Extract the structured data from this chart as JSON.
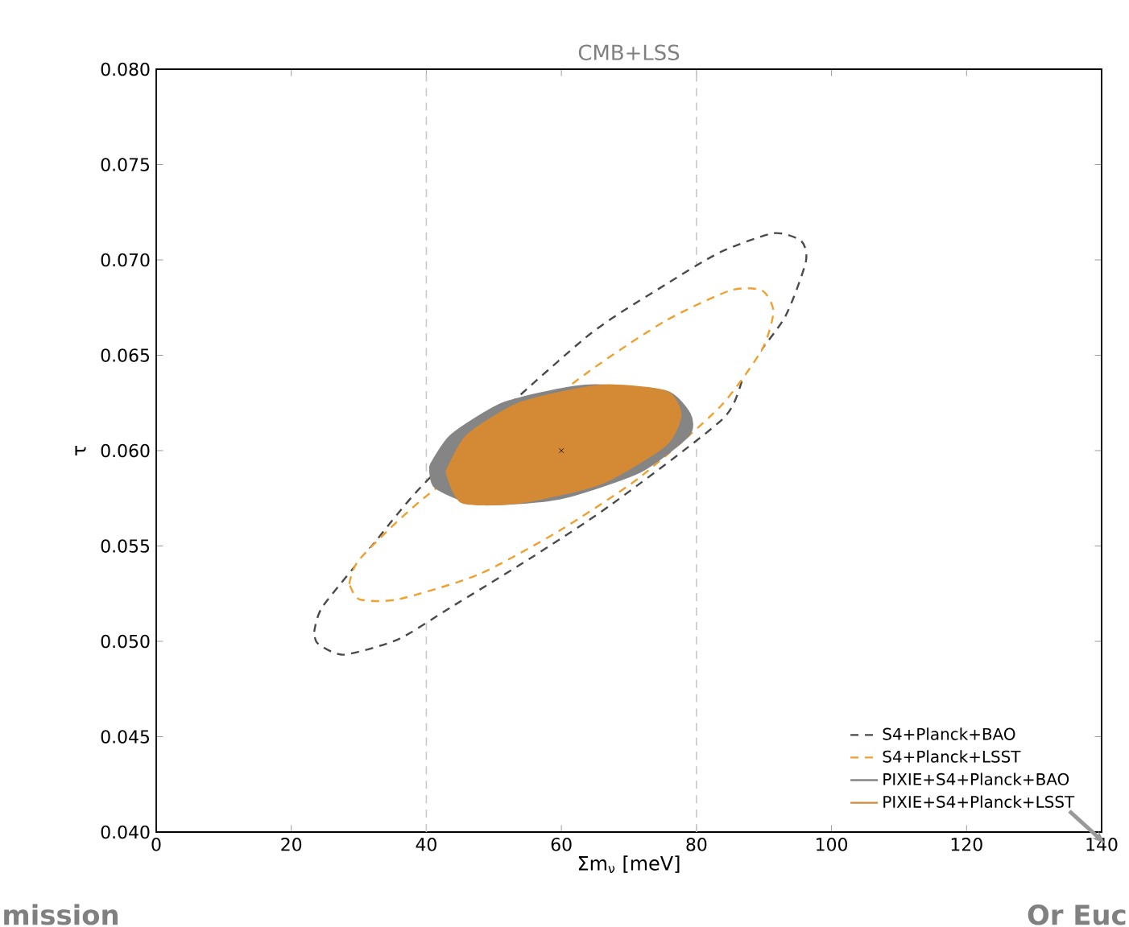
{
  "chart_data": {
    "type": "area",
    "title": "CMB+LSS",
    "xlabel": "Σm$_{ν}$ [meV]",
    "ylabel": "τ",
    "xlim": [
      0,
      140
    ],
    "ylim": [
      0.04,
      0.08
    ],
    "xticks": [
      0,
      20,
      40,
      60,
      80,
      100,
      120,
      140
    ],
    "yticks": [
      {
        "value": 0.04,
        "label": "0.040"
      },
      {
        "value": 0.045,
        "label": "0.045"
      },
      {
        "value": 0.05,
        "label": "0.050"
      },
      {
        "value": 0.055,
        "label": "0.055"
      },
      {
        "value": 0.06,
        "label": "0.060"
      },
      {
        "value": 0.065,
        "label": "0.065"
      },
      {
        "value": 0.07,
        "label": "0.070"
      },
      {
        "value": 0.075,
        "label": "0.075"
      },
      {
        "value": 0.08,
        "label": "0.080"
      }
    ],
    "legend": "bottom right",
    "grid": false,
    "ref_lines": [
      {
        "axis": "x",
        "value": 40,
        "color": "#c8c8c8",
        "line_style": "dashed"
      },
      {
        "axis": "x",
        "value": 80,
        "color": "#c8c8c8",
        "line_style": "dashed"
      }
    ],
    "annotations": [
      "mission",
      "Or Euc"
    ],
    "series": [
      {
        "name": "S4+Planck+BAO",
        "line_style": "dashed",
        "color": "#4a4a4a",
        "x": [
          23.4,
          24.6,
          31.7,
          40.6,
          51.6,
          63.5,
          75.4,
          83.5,
          91.4,
          95.5,
          96.2,
          93.1,
          87.4,
          84.0,
          67.5,
          55.6,
          43.7,
          35.8,
          27.7,
          23.9
        ],
        "values": [
          0.0505,
          0.0518,
          0.0549,
          0.0586,
          null,
          0.0659,
          0.0687,
          0.0704,
          0.0714,
          0.071,
          0.0699,
          0.067,
          0.0642,
          0.0617,
          0.0572,
          0.0544,
          0.0518,
          0.0501,
          0.0493,
          0.0499
        ]
      },
      {
        "name": "S4+Planck+LSST",
        "line_style": "dashed",
        "color": "#f0a030",
        "x": [
          28.6,
          30.1,
          39.6,
          51.6,
          63.5,
          75.4,
          85.0,
          89.7,
          91.4,
          89.7,
          83.5,
          71.6,
          59.7,
          47.7,
          35.8,
          30.1
        ],
        "values": [
          0.053,
          0.0543,
          0.0575,
          null,
          0.064,
          0.0668,
          0.0684,
          0.0684,
          0.0673,
          0.0653,
          0.0623,
          0.0586,
          0.0558,
          0.0535,
          0.0522,
          0.0522
        ]
      },
      {
        "name": "PIXIE+S4+Planck+BAO",
        "color": "#858585",
        "x": [
          40.6,
          43.7,
          51.6,
          63.5,
          75.4,
          79.0,
          78.8,
          71.6,
          59.7,
          47.7,
          41.3
        ],
        "values": [
          0.0592,
          0.0608,
          0.0625,
          0.0634,
          0.0631,
          0.0619,
          0.0608,
          0.0589,
          0.0575,
          0.0572,
          0.0581
        ]
      },
      {
        "name": "PIXIE+S4+Planck+LSST",
        "color": "#d48a35",
        "x": [
          43.0,
          46.1,
          54.0,
          65.9,
          75.4,
          77.6,
          75.4,
          65.9,
          54.0,
          45.3
        ],
        "values": [
          0.0589,
          0.0608,
          0.0625,
          0.0634,
          0.0631,
          0.0619,
          0.0603,
          0.0583,
          0.0573,
          0.0573
        ]
      },
      {
        "type": "scatter",
        "marker": "cross",
        "color": "#000000",
        "x": [
          60
        ],
        "values": [
          0.06
        ]
      }
    ]
  }
}
